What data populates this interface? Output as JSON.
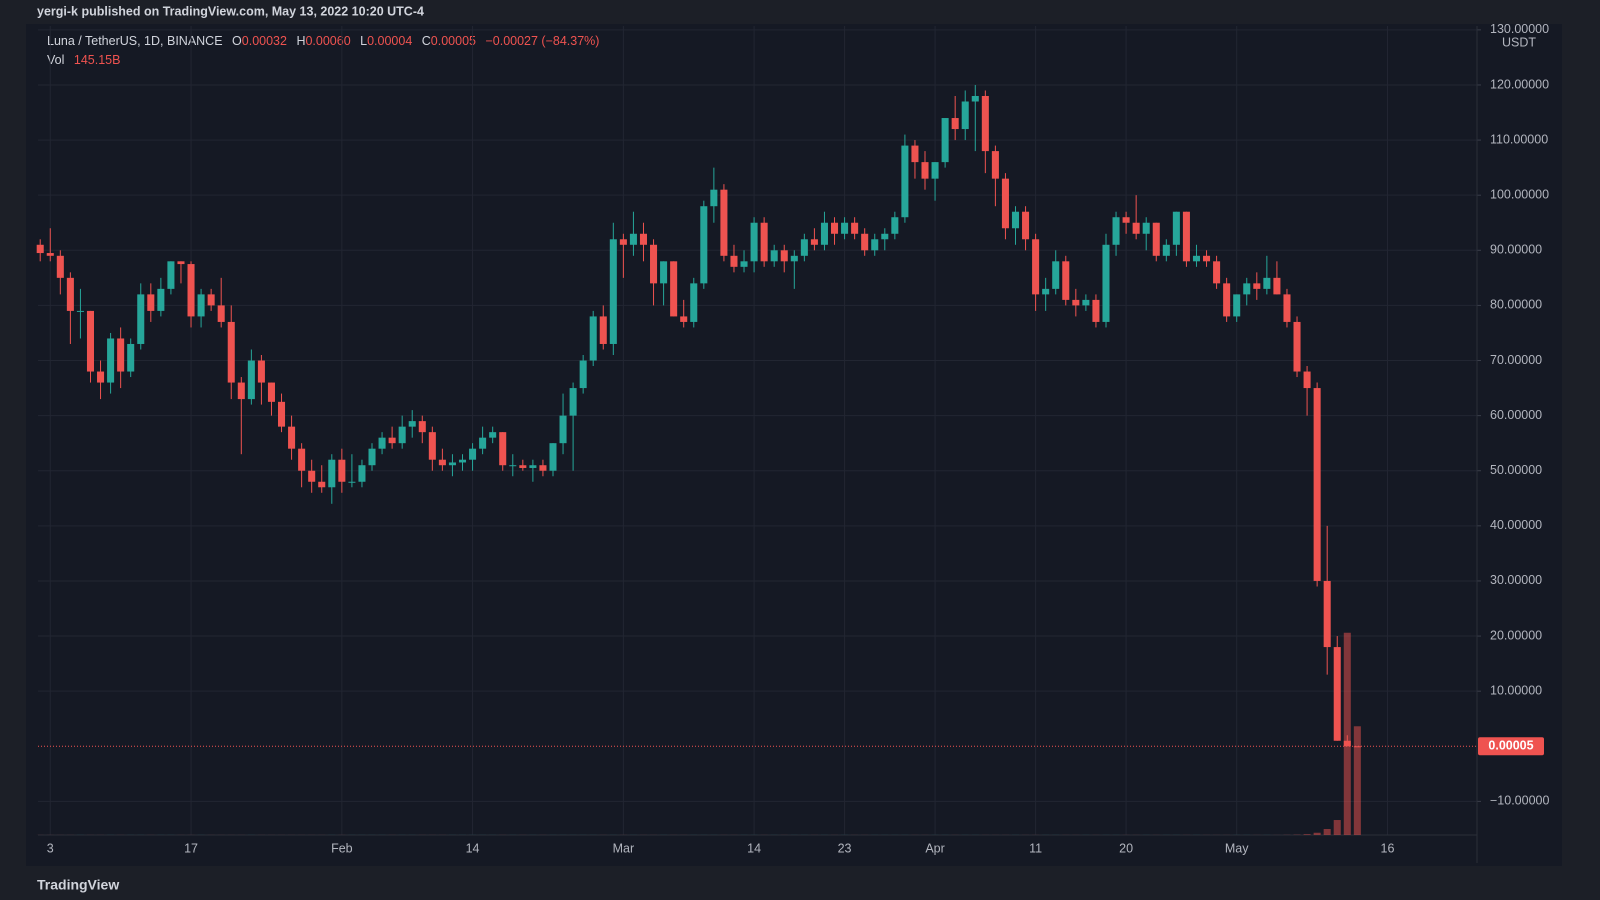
{
  "header": {
    "byline": "yergi-k published on TradingView.com, May 13, 2022 10:20 UTC-4",
    "footer": "TradingView"
  },
  "chart_data": {
    "type": "candlestick",
    "symbol": "Luna / TetherUS, 1D, BINANCE",
    "ohlc_legend": [
      {
        "key": "O",
        "text": "0.00032"
      },
      {
        "key": "H",
        "text": "0.00060"
      },
      {
        "key": "L",
        "text": "0.00004"
      },
      {
        "key": "C",
        "text": "0.00005"
      }
    ],
    "change_label": "−0.00027 (−84.37%)",
    "volume_name": "Vol",
    "volume_value_label": "145.15B",
    "currency": "USDT",
    "last_price_label": "0.00005",
    "up_color": "#26a69a",
    "down_color": "#ef5350",
    "grid": true,
    "x": [
      2,
      3,
      4,
      5,
      6,
      7,
      8,
      9,
      10,
      11,
      12,
      13,
      14,
      15,
      16,
      17,
      18,
      19,
      20,
      21,
      22,
      23,
      24,
      25,
      26,
      27,
      28,
      29,
      30,
      31,
      32,
      33,
      34,
      35,
      36,
      37,
      38,
      39,
      40,
      41,
      42,
      43,
      44,
      45,
      46,
      47,
      48,
      49,
      50,
      51,
      52,
      53,
      54,
      55,
      56,
      57,
      58,
      59,
      60,
      61,
      62,
      63,
      64,
      65,
      66,
      67,
      68,
      69,
      70,
      71,
      72,
      73,
      74,
      75,
      76,
      77,
      78,
      79,
      80,
      81,
      82,
      83,
      84,
      85,
      86,
      87,
      88,
      89,
      90,
      91,
      92,
      93,
      94,
      95,
      96,
      97,
      98,
      99,
      100,
      101,
      102,
      103,
      104,
      105,
      106,
      107,
      108,
      109,
      110,
      111,
      112,
      113,
      114,
      115,
      116,
      117,
      118,
      119,
      120,
      121,
      122,
      123,
      124,
      125,
      126,
      127,
      128,
      129,
      130,
      131,
      132,
      133
    ],
    "open": [
      91,
      89.5,
      89,
      85,
      79,
      79,
      68,
      66,
      74,
      68,
      73,
      82,
      79,
      83,
      88,
      87.5,
      78,
      82,
      80,
      77,
      66,
      63,
      70,
      66,
      62.5,
      58,
      54,
      50,
      48,
      47,
      52,
      48,
      48,
      51,
      54,
      56,
      55,
      58,
      59,
      57,
      52,
      51,
      51.5,
      52,
      54,
      56,
      57,
      51,
      51,
      50.5,
      51,
      50,
      55,
      60,
      65,
      70,
      78,
      73,
      92,
      91,
      93,
      91,
      84,
      88,
      78,
      77,
      84,
      98,
      101,
      89,
      87,
      88,
      95,
      88,
      90,
      88,
      89,
      92,
      91,
      95,
      93,
      95,
      93,
      90,
      92,
      93,
      96,
      109,
      106,
      103,
      106,
      114,
      112,
      117,
      118,
      108,
      103,
      94,
      97,
      92,
      82,
      83,
      88,
      81,
      80,
      81,
      77,
      91,
      96,
      95,
      93,
      95,
      89,
      91,
      97,
      88,
      89,
      88,
      84,
      78,
      82,
      84,
      83,
      85,
      82,
      77,
      68,
      65,
      30,
      18,
      1,
      0.00032
    ],
    "high": [
      92,
      94,
      90,
      86,
      83,
      79,
      70,
      75,
      76,
      74,
      84,
      84,
      85,
      88,
      88,
      88,
      83,
      83,
      85,
      80,
      67,
      72,
      71,
      66,
      64,
      60,
      55,
      52,
      51,
      53,
      54,
      53,
      52,
      55,
      57,
      58,
      60,
      61,
      60,
      58,
      54,
      53,
      53,
      55,
      58,
      58,
      57,
      53,
      52,
      52,
      52,
      55,
      64,
      66,
      71,
      79,
      80,
      95,
      93,
      97,
      95,
      92,
      88,
      88,
      81,
      85,
      99,
      105,
      102,
      91,
      90,
      96,
      96,
      91,
      91,
      90,
      93,
      94,
      97,
      96,
      96,
      96,
      94,
      93,
      94,
      97,
      111,
      110,
      108,
      106,
      114,
      118,
      119,
      120,
      119,
      109,
      104,
      98,
      98,
      93,
      85,
      90,
      89,
      83,
      82,
      82,
      93,
      97,
      97,
      100,
      96,
      95,
      92,
      97,
      97,
      91,
      90,
      89,
      85,
      82,
      85,
      86,
      89,
      88,
      83,
      78,
      69,
      66,
      40,
      20,
      2,
      0.0006
    ],
    "low": [
      88,
      88,
      82,
      73,
      74,
      66,
      63,
      64,
      65,
      67,
      72,
      77,
      78,
      82,
      84,
      76,
      76,
      79,
      76,
      63,
      53,
      62,
      62,
      60,
      57,
      52,
      47,
      46,
      46,
      44,
      46,
      47,
      47,
      50,
      53,
      54,
      54,
      56,
      55,
      50,
      50,
      49,
      50,
      50,
      53,
      55,
      50,
      49,
      50,
      48,
      49,
      49,
      53,
      50,
      64,
      69,
      72,
      71,
      85,
      89,
      88,
      80,
      80,
      78,
      76,
      76,
      83,
      95,
      88,
      86,
      86,
      86,
      87,
      87,
      86,
      83,
      88,
      90,
      90,
      91,
      92,
      92,
      89,
      89,
      90,
      92,
      95,
      103,
      101,
      99,
      105,
      110,
      110,
      108,
      104,
      98,
      92,
      91,
      90,
      79,
      79,
      82,
      80,
      78,
      79,
      76,
      76,
      89,
      93,
      92,
      90,
      88,
      88,
      89,
      87,
      87,
      87,
      83,
      77,
      77,
      80,
      81,
      82,
      82,
      76,
      67,
      60,
      29,
      13,
      1,
      0.01,
      4e-05
    ],
    "close": [
      89.5,
      89,
      85,
      79,
      79,
      68,
      66,
      74,
      68,
      73,
      82,
      79,
      83,
      88,
      87.5,
      78,
      82,
      80,
      77,
      66,
      63,
      70,
      66,
      62.5,
      58,
      54,
      50,
      48,
      47,
      52,
      48,
      48,
      51,
      54,
      56,
      55,
      58,
      59,
      57,
      52,
      51,
      51.5,
      52,
      54,
      56,
      57,
      51,
      51,
      50.5,
      51,
      50,
      55,
      60,
      65,
      70,
      78,
      73,
      92,
      91,
      93,
      91,
      84,
      88,
      78,
      77,
      84,
      98,
      101,
      89,
      87,
      88,
      95,
      88,
      90,
      88,
      89,
      92,
      91,
      95,
      93,
      95,
      93,
      90,
      92,
      93,
      96,
      109,
      106,
      103,
      106,
      114,
      112,
      117,
      118,
      108,
      103,
      94,
      97,
      92,
      82,
      83,
      88,
      81,
      80,
      81,
      77,
      91,
      96,
      95,
      93,
      95,
      89,
      91,
      97,
      88,
      89,
      88,
      84,
      78,
      82,
      84,
      83,
      85,
      82,
      77,
      68,
      65,
      30,
      18,
      1,
      0.00032,
      5e-05
    ],
    "volume": [
      100000000.0,
      100000000.0,
      100000000.0,
      100000000.0,
      100000000.0,
      100000000.0,
      100000000.0,
      100000000.0,
      100000000.0,
      100000000.0,
      100000000.0,
      100000000.0,
      100000000.0,
      100000000.0,
      100000000.0,
      100000000.0,
      100000000.0,
      100000000.0,
      100000000.0,
      100000000.0,
      100000000.0,
      100000000.0,
      100000000.0,
      100000000.0,
      100000000.0,
      100000000.0,
      100000000.0,
      100000000.0,
      100000000.0,
      100000000.0,
      100000000.0,
      100000000.0,
      100000000.0,
      100000000.0,
      100000000.0,
      100000000.0,
      100000000.0,
      100000000.0,
      100000000.0,
      100000000.0,
      100000000.0,
      100000000.0,
      100000000.0,
      100000000.0,
      100000000.0,
      100000000.0,
      100000000.0,
      100000000.0,
      100000000.0,
      100000000.0,
      100000000.0,
      100000000.0,
      100000000.0,
      100000000.0,
      100000000.0,
      100000000.0,
      100000000.0,
      100000000.0,
      100000000.0,
      100000000.0,
      100000000.0,
      100000000.0,
      100000000.0,
      100000000.0,
      100000000.0,
      100000000.0,
      100000000.0,
      100000000.0,
      100000000.0,
      100000000.0,
      100000000.0,
      100000000.0,
      100000000.0,
      100000000.0,
      100000000.0,
      100000000.0,
      100000000.0,
      100000000.0,
      100000000.0,
      100000000.0,
      100000000.0,
      100000000.0,
      100000000.0,
      100000000.0,
      100000000.0,
      100000000.0,
      100000000.0,
      100000000.0,
      100000000.0,
      100000000.0,
      100000000.0,
      100000000.0,
      100000000.0,
      100000000.0,
      100000000.0,
      100000000.0,
      100000000.0,
      100000000.0,
      100000000.0,
      100000000.0,
      100000000.0,
      100000000.0,
      100000000.0,
      100000000.0,
      100000000.0,
      100000000.0,
      100000000.0,
      100000000.0,
      100000000.0,
      100000000.0,
      100000000.0,
      100000000.0,
      100000000.0,
      100000000.0,
      100000000.0,
      100000000.0,
      100000000.0,
      100000000.0,
      100000000.0,
      100000000.0,
      100000000.0,
      100000000.0,
      100000000.0,
      100000000.0,
      200000000.0,
      400000000.0,
      1000000000.0,
      3000000000.0,
      8000000000.0,
      20000000000.0,
      270000000000.0,
      145150000000
    ],
    "xlim": [
      1.78,
      144.9
    ],
    "xticks": [
      3,
      17,
      {
        "value": 32,
        "label": "Feb"
      },
      {
        "value": 45,
        "label": "14"
      },
      {
        "value": 60,
        "label": "Mar"
      },
      {
        "value": 73,
        "label": "14"
      },
      {
        "value": 82,
        "label": "23"
      },
      {
        "value": 91,
        "label": "Apr"
      },
      {
        "value": 101,
        "label": "11"
      },
      {
        "value": 110,
        "label": "20"
      },
      {
        "value": 121,
        "label": "May"
      },
      {
        "value": 136,
        "label": "16"
      }
    ],
    "ylim": [
      -16.1,
      130.7
    ],
    "yticks": [
      {
        "value": -10,
        "label": "−10.00000"
      },
      {
        "value": 10,
        "label": "10.00000"
      },
      {
        "value": 20,
        "label": "20.00000"
      },
      {
        "value": 30,
        "label": "30.00000"
      },
      {
        "value": 40,
        "label": "40.00000"
      },
      {
        "value": 50,
        "label": "50.00000"
      },
      {
        "value": 60,
        "label": "60.00000"
      },
      {
        "value": 70,
        "label": "70.00000"
      },
      {
        "value": 80,
        "label": "80.00000"
      },
      {
        "value": 90,
        "label": "90.00000"
      },
      {
        "value": 100,
        "label": "100.00000"
      },
      {
        "value": 110,
        "label": "110.00000"
      },
      {
        "value": 120,
        "label": "120.00000"
      },
      {
        "value": 130,
        "label": "130.00000"
      }
    ]
  }
}
